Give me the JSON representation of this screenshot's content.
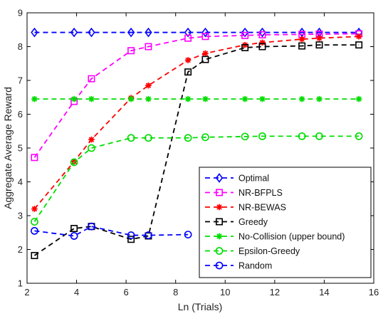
{
  "chart_data": {
    "type": "line",
    "title": "",
    "xlabel": "Ln (Trials)",
    "ylabel": "Aggregate Average Reward",
    "xlim": [
      2,
      16
    ],
    "ylim": [
      1,
      9
    ],
    "xticks": [
      2,
      4,
      6,
      8,
      10,
      12,
      14,
      16
    ],
    "yticks": [
      1,
      2,
      3,
      4,
      5,
      6,
      7,
      8,
      9
    ],
    "grid": false,
    "legend_position": "lower-right",
    "series": [
      {
        "name": "Optimal",
        "color": "#0000ff",
        "marker": "diamond",
        "x": [
          2.3,
          3.9,
          4.6,
          6.2,
          6.9,
          8.5,
          9.2,
          10.8,
          11.5,
          13.1,
          13.8,
          15.4
        ],
        "y": [
          8.42,
          8.42,
          8.42,
          8.42,
          8.42,
          8.42,
          8.42,
          8.42,
          8.42,
          8.42,
          8.42,
          8.42
        ]
      },
      {
        "name": "NR-BFPLS",
        "color": "#ff00ff",
        "marker": "square",
        "x": [
          2.3,
          3.9,
          4.6,
          6.2,
          6.9,
          8.5,
          9.2,
          10.8,
          11.5,
          13.1,
          13.8,
          15.4
        ],
        "y": [
          4.72,
          6.38,
          7.05,
          7.88,
          8.0,
          8.25,
          8.3,
          8.33,
          8.35,
          8.36,
          8.37,
          8.38
        ]
      },
      {
        "name": "NR-BEWAS",
        "color": "#ff0000",
        "marker": "star",
        "x": [
          2.3,
          3.9,
          4.6,
          6.2,
          6.9,
          8.5,
          9.2,
          10.8,
          11.5,
          13.1,
          13.8,
          15.4
        ],
        "y": [
          3.2,
          4.6,
          5.25,
          6.48,
          6.85,
          7.6,
          7.8,
          8.05,
          8.12,
          8.22,
          8.25,
          8.3
        ]
      },
      {
        "name": "Greedy",
        "color": "#000000",
        "marker": "square",
        "x": [
          2.3,
          3.9,
          4.6,
          6.2,
          6.9,
          8.5,
          9.2,
          10.8,
          11.5,
          13.1,
          13.8,
          15.4
        ],
        "y": [
          1.82,
          2.62,
          2.68,
          2.3,
          2.4,
          7.25,
          7.62,
          7.97,
          8.0,
          8.02,
          8.05,
          8.05
        ]
      },
      {
        "name": "No-Collision (upper bound)",
        "color": "#00dd00",
        "marker": "star",
        "x": [
          2.3,
          3.9,
          4.6,
          6.2,
          6.9,
          8.5,
          9.2,
          10.8,
          11.5,
          13.1,
          13.8,
          15.4
        ],
        "y": [
          6.45,
          6.45,
          6.45,
          6.45,
          6.45,
          6.45,
          6.45,
          6.45,
          6.45,
          6.45,
          6.45,
          6.45
        ]
      },
      {
        "name": "Epsilon-Greedy",
        "color": "#00dd00",
        "marker": "circle",
        "x": [
          2.3,
          3.9,
          4.6,
          6.2,
          6.9,
          8.5,
          9.2,
          10.8,
          11.5,
          13.1,
          13.8,
          15.4
        ],
        "y": [
          2.82,
          4.58,
          5.0,
          5.3,
          5.3,
          5.3,
          5.32,
          5.34,
          5.35,
          5.35,
          5.35,
          5.35
        ]
      },
      {
        "name": "Random",
        "color": "#0000ff",
        "marker": "circle",
        "x": [
          2.3,
          3.9,
          4.6,
          6.2,
          6.9,
          8.5
        ],
        "y": [
          2.55,
          2.4,
          2.68,
          2.42,
          2.42,
          2.44
        ]
      }
    ]
  }
}
